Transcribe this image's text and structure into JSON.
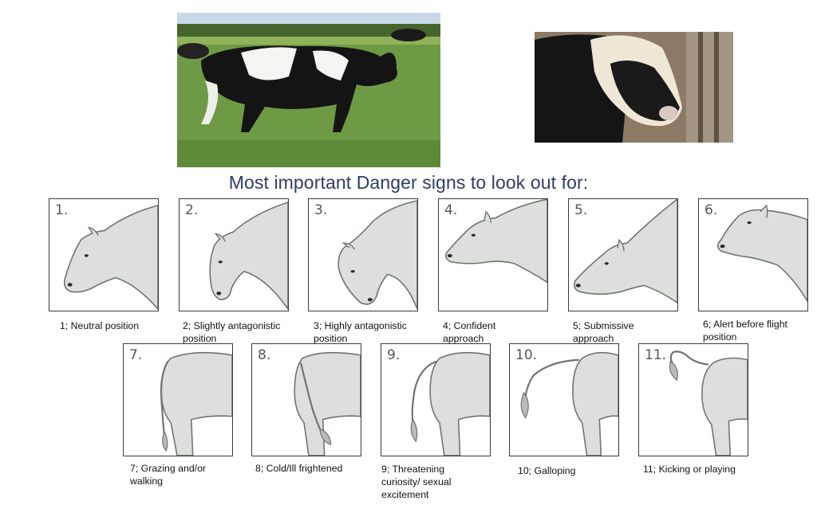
{
  "heading": "Most important Danger signs to look out for:",
  "photos": [
    {
      "name": "cow-in-pasture-photo"
    },
    {
      "name": "bull-headshot-photo"
    }
  ],
  "head_positions": [
    {
      "number": "1.",
      "caption": "1; Neutral position"
    },
    {
      "number": "2.",
      "caption": "2; Slightly antagonistic position"
    },
    {
      "number": "3.",
      "caption": "3; Highly antagonistic position"
    },
    {
      "number": "4.",
      "caption": "4; Confident approach"
    },
    {
      "number": "5.",
      "caption": "5; Submissive approach"
    },
    {
      "number": "6.",
      "caption": "6; Alert before flight position"
    }
  ],
  "tail_positions": [
    {
      "number": "7.",
      "caption": "7; Grazing and/or walking"
    },
    {
      "number": "8.",
      "caption": "8; Cold/Ill frightened"
    },
    {
      "number": "9.",
      "caption": "9; Threatening curiosity/ sexual excitement"
    },
    {
      "number": "10.",
      "caption": "10; Galloping"
    },
    {
      "number": "11.",
      "caption": "11; Kicking or playing"
    }
  ],
  "colors": {
    "heading": "#2c3d6b",
    "illustration_fill": "#dcdfdb",
    "illustration_stroke": "#6f746f"
  }
}
